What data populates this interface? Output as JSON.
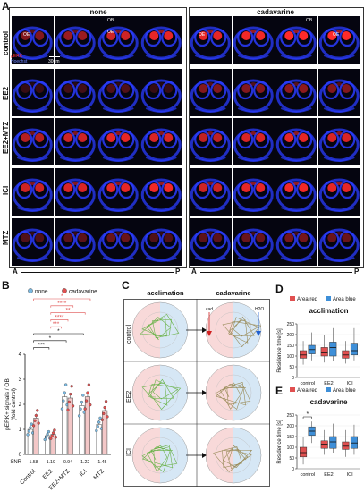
{
  "panelA": {
    "letter": "A",
    "group_none": "none",
    "group_cad": "cadavarine",
    "rows": [
      "control",
      "EE2",
      "EE2+MTZ",
      "ICI",
      "MTZ"
    ],
    "legend_perk": "pERK",
    "legend_hoechst": "Hoechst",
    "scale": "30um",
    "labels": [
      "OB",
      "OE",
      "OE",
      "OB",
      "OE",
      "OE"
    ],
    "axis_a": "A",
    "axis_p": "P",
    "colors": {
      "red": "#ff2a2a",
      "blue": "#2a3cff",
      "bg": "#050510"
    }
  },
  "panelB": {
    "letter": "B",
    "legend": [
      {
        "name": "none",
        "color": "#7ab8e0"
      },
      {
        "name": "cadavarine",
        "color": "#e05050"
      }
    ],
    "ylabel": "pERK+ signals / OB\n(fold control)",
    "snr_label": "SNR",
    "snr": [
      "1.58",
      "1.19",
      "0.94",
      "1.22",
      "1.45"
    ],
    "stars": [
      "*",
      "****",
      "**",
      "****",
      "***",
      "*",
      "*",
      "***"
    ],
    "chart_data": {
      "type": "bar",
      "categories": [
        "Control",
        "EE2",
        "EE2+MTZ",
        "ICI",
        "MTZ"
      ],
      "ylim": [
        0,
        4
      ],
      "yticks": [
        "0",
        "1",
        "2",
        "3",
        "4"
      ],
      "series": [
        {
          "name": "none",
          "values": [
            1.0,
            0.75,
            2.3,
            1.95,
            1.2
          ]
        },
        {
          "name": "cadavarine",
          "values": [
            1.45,
            0.8,
            2.25,
            2.3,
            1.75
          ]
        }
      ]
    }
  },
  "panelC": {
    "letter": "C",
    "col1": "acclimation",
    "col2": "cadavarine",
    "rows": [
      "control",
      "EE2",
      "ICI"
    ],
    "cad": "cad",
    "h2o": "H2O"
  },
  "panelD": {
    "letter": "D",
    "legend": [
      {
        "name": "Area red",
        "color": "#e05050"
      },
      {
        "name": "Area blue",
        "color": "#3e8fd8"
      }
    ],
    "title": "acclimation",
    "ylabel": "Residence time [s]",
    "chart_data": {
      "type": "box",
      "categories": [
        "control",
        "EE2",
        "ICI"
      ],
      "ylim": [
        0,
        250
      ],
      "yticks": [
        "0",
        "50",
        "100",
        "150",
        "200",
        "250"
      ],
      "series": [
        {
          "name": "Area red",
          "boxes": [
            [
              60,
              90,
              105,
              125,
              170
            ],
            [
              70,
              100,
              115,
              140,
              200
            ],
            [
              65,
              90,
              105,
              125,
              170
            ]
          ]
        },
        {
          "name": "Area blue",
          "boxes": [
            [
              80,
              110,
              130,
              150,
              210
            ],
            [
              75,
              100,
              140,
              165,
              230
            ],
            [
              80,
              105,
              125,
              160,
              230
            ]
          ]
        }
      ]
    }
  },
  "panelE": {
    "letter": "E",
    "legend": [
      {
        "name": "Area red",
        "color": "#e05050"
      },
      {
        "name": "Area blue",
        "color": "#3e8fd8"
      }
    ],
    "title": "cadavarine",
    "ylabel": "Residence time [s]",
    "star": "*",
    "chart_data": {
      "type": "box",
      "categories": [
        "control",
        "EE2",
        "ICI"
      ],
      "ylim": [
        0,
        250
      ],
      "yticks": [
        "0",
        "50",
        "100",
        "150",
        "200",
        "250"
      ],
      "series": [
        {
          "name": "Area red",
          "boxes": [
            [
              20,
              55,
              75,
              100,
              150
            ],
            [
              65,
              95,
              115,
              130,
              180
            ],
            [
              55,
              90,
              105,
              125,
              180
            ]
          ]
        },
        {
          "name": "Area blue",
          "boxes": [
            [
              120,
              155,
              175,
              195,
              220
            ],
            [
              75,
              95,
              125,
              150,
              210
            ],
            [
              65,
              95,
              120,
              150,
              205
            ]
          ]
        }
      ]
    }
  }
}
